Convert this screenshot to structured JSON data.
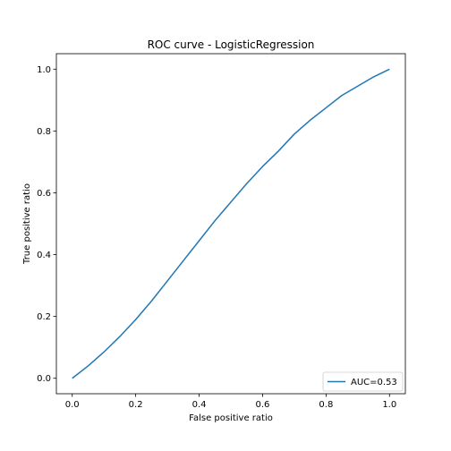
{
  "chart_data": {
    "type": "line",
    "title": "ROC curve - LogisticRegression",
    "xlabel": "False positive ratio",
    "ylabel": "True positive ratio",
    "xlim": [
      -0.05,
      1.05
    ],
    "ylim": [
      -0.05,
      1.05
    ],
    "x_ticks": [
      "0.0",
      "0.2",
      "0.4",
      "0.6",
      "0.8",
      "1.0"
    ],
    "y_ticks": [
      "0.0",
      "0.2",
      "0.4",
      "0.6",
      "0.8",
      "1.0"
    ],
    "grid": false,
    "legend_position": "lower-right",
    "series": [
      {
        "name": "AUC=0.53",
        "color": "#1f77b4",
        "x": [
          0.0,
          0.05,
          0.1,
          0.15,
          0.2,
          0.25,
          0.3,
          0.35,
          0.4,
          0.45,
          0.5,
          0.55,
          0.6,
          0.65,
          0.7,
          0.75,
          0.8,
          0.85,
          0.9,
          0.95,
          1.0
        ],
        "y": [
          0.0,
          0.04,
          0.085,
          0.135,
          0.19,
          0.25,
          0.315,
          0.38,
          0.445,
          0.51,
          0.57,
          0.63,
          0.685,
          0.735,
          0.79,
          0.835,
          0.875,
          0.915,
          0.945,
          0.975,
          1.0
        ]
      }
    ]
  }
}
